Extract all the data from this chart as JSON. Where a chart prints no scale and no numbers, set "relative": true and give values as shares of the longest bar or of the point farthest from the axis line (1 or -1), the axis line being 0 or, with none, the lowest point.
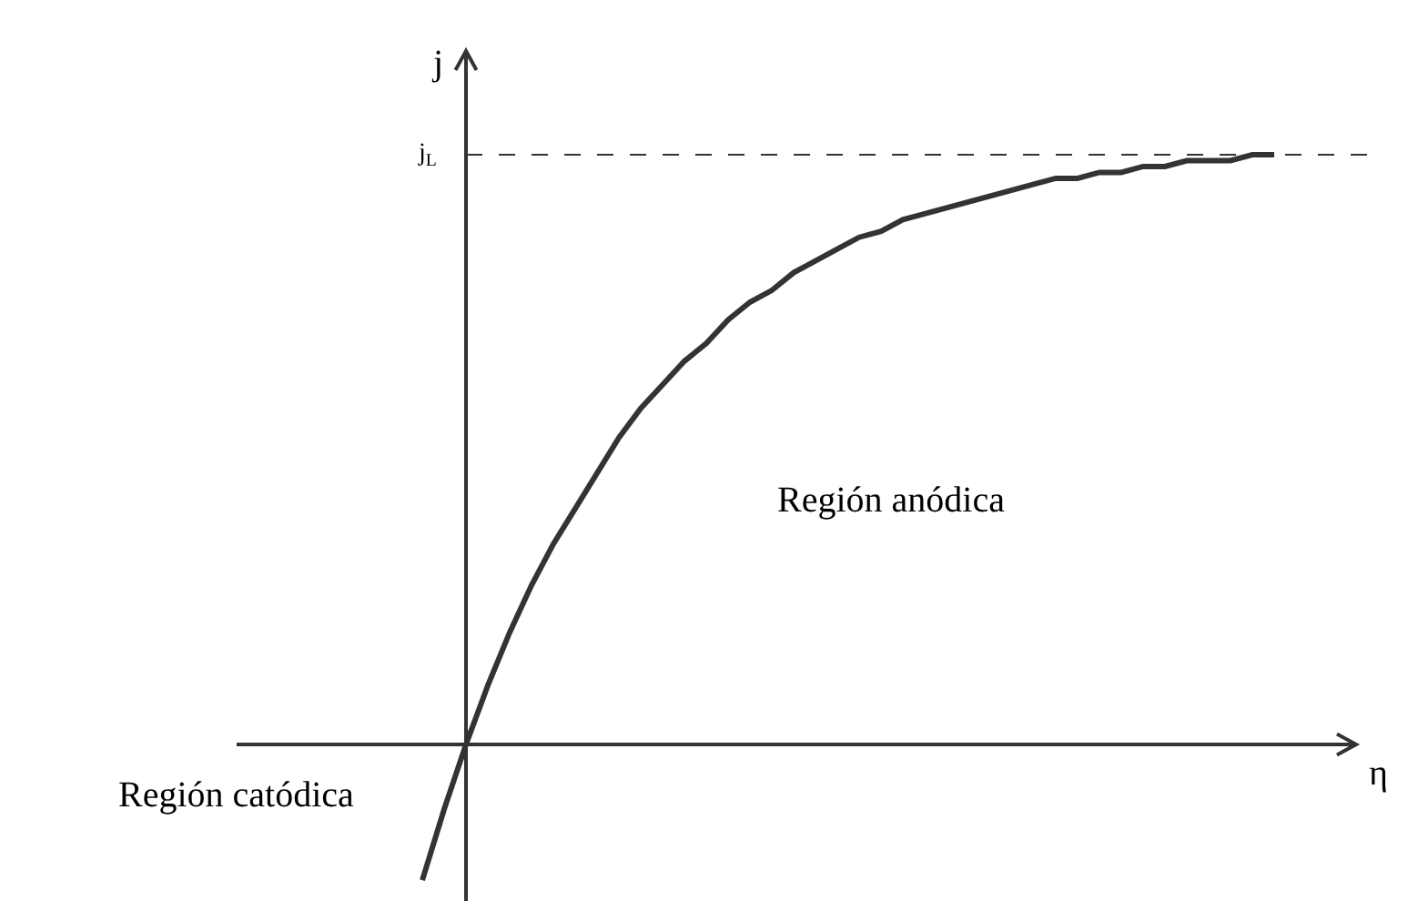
{
  "chart_data": {
    "type": "line",
    "relative": true,
    "xlabel": "η",
    "ylabel": "j",
    "categories": [
      null,
      null,
      null,
      null,
      null,
      null,
      null,
      null,
      null,
      null,
      null,
      null,
      null,
      null,
      null,
      null,
      null,
      null,
      null,
      null,
      null,
      null,
      null,
      null,
      null,
      null,
      null,
      null,
      null,
      null,
      null,
      null,
      null,
      null,
      null,
      null,
      null,
      null,
      null,
      null
    ],
    "series": [
      {
        "color": "#333333",
        "values": [
          -0.23,
          -0.11,
          0,
          0.1,
          0.19,
          0.27,
          0.34,
          0.4,
          0.46,
          0.52,
          0.57,
          0.61,
          0.65,
          0.68,
          0.72,
          0.75,
          0.77,
          0.8,
          0.82,
          0.84,
          0.86,
          0.87,
          0.89,
          0.9,
          0.91,
          0.92,
          0.93,
          0.94,
          0.95,
          0.96,
          0.96,
          0.97,
          0.97,
          0.98,
          0.98,
          0.99,
          0.99,
          0.99,
          1.0,
          1.0
        ]
      }
    ],
    "ref_lines": [
      {
        "axis": "y",
        "value": 1,
        "label": "j$_{L}$",
        "line_style": "dashed",
        "color": "#333333"
      }
    ],
    "annotations": [
      "Región anódica",
      "Región catódica"
    ],
    "grid": false
  }
}
